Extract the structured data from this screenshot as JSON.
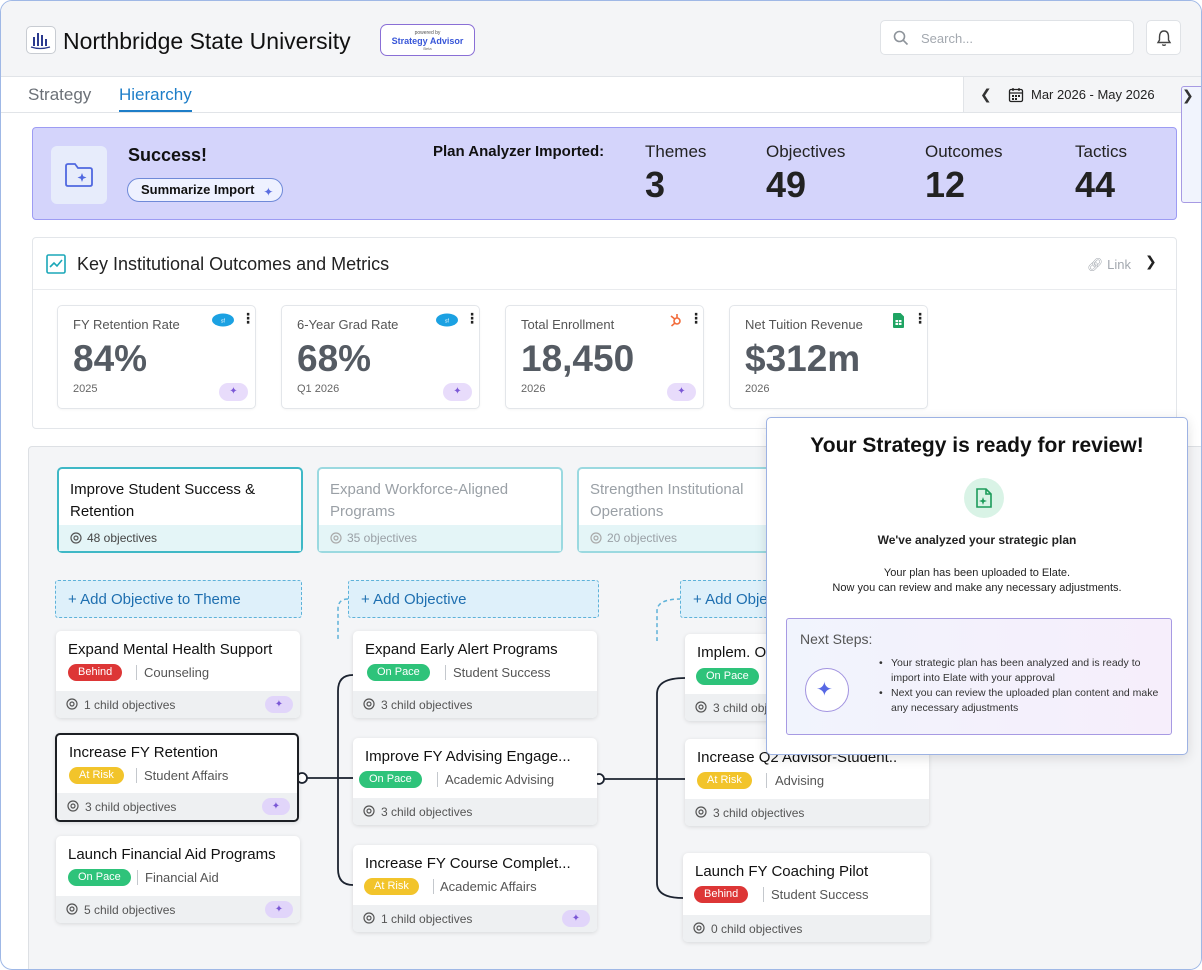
{
  "header": {
    "brand": "Northbridge State University",
    "badge_small": "powered by",
    "badge_big": "Strategy Advisor",
    "badge_beta": "Beta",
    "search_placeholder": "Search..."
  },
  "tabs": [
    {
      "label": "Strategy",
      "active": false
    },
    {
      "label": "Hierarchy",
      "active": true
    }
  ],
  "date_range": "Mar 2026 - May 2026",
  "success": {
    "title": "Success!",
    "summarize_label": "Summarize Import",
    "imported_label": "Plan Analyzer Imported:",
    "stats": [
      {
        "label": "Themes",
        "value": "3"
      },
      {
        "label": "Objectives",
        "value": "49"
      },
      {
        "label": "Outcomes",
        "value": "12"
      },
      {
        "label": "Tactics",
        "value": "44"
      }
    ]
  },
  "metrics": {
    "title": "Key Institutional Outcomes and Metrics",
    "link_label": "Link",
    "cards": [
      {
        "label": "FY Retention Rate",
        "value": "84%",
        "period": "2025",
        "source": "salesforce"
      },
      {
        "label": "6-Year Grad Rate",
        "value": "68%",
        "period": "Q1 2026",
        "source": "salesforce"
      },
      {
        "label": "Total Enrollment",
        "value": "18,450",
        "period": "2026",
        "source": "hubspot"
      },
      {
        "label": "Net Tuition Revenue",
        "value": "$312m",
        "period": "2026",
        "source": "sheets"
      }
    ]
  },
  "themes": [
    {
      "title": "Improve Student Success & Retention",
      "count": "48 objectives",
      "active": true
    },
    {
      "title": "Expand Workforce-Aligned Programs",
      "count": "35 objectives",
      "active": false
    },
    {
      "title": "Strengthen Institutional Operations",
      "count": "20 objectives",
      "active": false
    }
  ],
  "add_buttons": [
    "+ Add Objective to Theme",
    "+ Add Objective",
    "+ Add Obje"
  ],
  "columns": [
    [
      {
        "title": "Expand Mental Health Support",
        "status": "Behind",
        "dept": "Counseling",
        "children": "1 child objectives"
      },
      {
        "title": "Increase FY Retention",
        "status": "At Risk",
        "dept": "Student Affairs",
        "children": "3 child objectives"
      },
      {
        "title": "Launch Financial Aid Programs",
        "status": "On Pace",
        "dept": "Financial Aid",
        "children": "5 child objectives"
      }
    ],
    [
      {
        "title": "Expand Early Alert Programs",
        "status": "On Pace",
        "dept": "Student Success",
        "children": "3 child objectives"
      },
      {
        "title": "Improve FY Advising Engage...",
        "status": "On Pace",
        "dept": "Academic Advising",
        "children": "3 child objectives"
      },
      {
        "title": "Increase FY Course Complet...",
        "status": "At Risk",
        "dept": "Academic Affairs",
        "children": "1 child objectives"
      }
    ],
    [
      {
        "title": "Implem. O",
        "status": "On Pace",
        "dept": "",
        "children": "3 child obj"
      },
      {
        "title": "Increase Q2 Advisor-Student..",
        "status": "At Risk",
        "dept": "Advising",
        "children": "3 child objectives"
      },
      {
        "title": "Launch FY Coaching Pilot",
        "status": "Behind",
        "dept": "Student Success",
        "children": "0 child objectives"
      }
    ]
  ],
  "popup": {
    "title": "Your Strategy is ready for review!",
    "subtitle": "We've analyzed your strategic plan",
    "line1": "Your plan has been uploaded to Elate.",
    "line2": "Now you can review and make any necessary adjustments.",
    "next_heading": "Next Steps:",
    "steps": [
      "Your strategic plan has been analyzed and is ready to import into Elate with your approval",
      "Next you can review the uploaded plan content and make any necessary adjustments"
    ]
  },
  "colors": {
    "accent": "#1e7ec8",
    "banner": "#d4d4fb",
    "behind": "#dd3636",
    "at_risk": "#f2c42b",
    "on_pace": "#2ec37a",
    "theme_border": "#3fb8c6"
  }
}
